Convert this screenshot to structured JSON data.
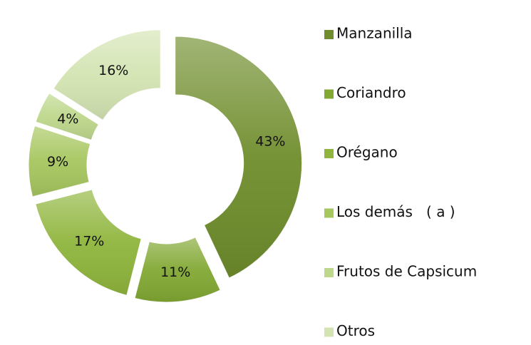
{
  "chart_data": {
    "type": "donut",
    "categories": [
      "Manzanilla",
      "Coriandro",
      "Orégano",
      "Los demás   ( a )",
      "Frutos de Capsicum",
      "Otros"
    ],
    "values": [
      43,
      11,
      17,
      9,
      4,
      16
    ],
    "value_labels": [
      "43%",
      "11%",
      "17%",
      "9%",
      "4%",
      "16%"
    ],
    "colors": [
      "#6f8d2c",
      "#82a833",
      "#8fb53c",
      "#a6c65e",
      "#bdd78b",
      "#d3e4b2"
    ],
    "legend": "right"
  }
}
